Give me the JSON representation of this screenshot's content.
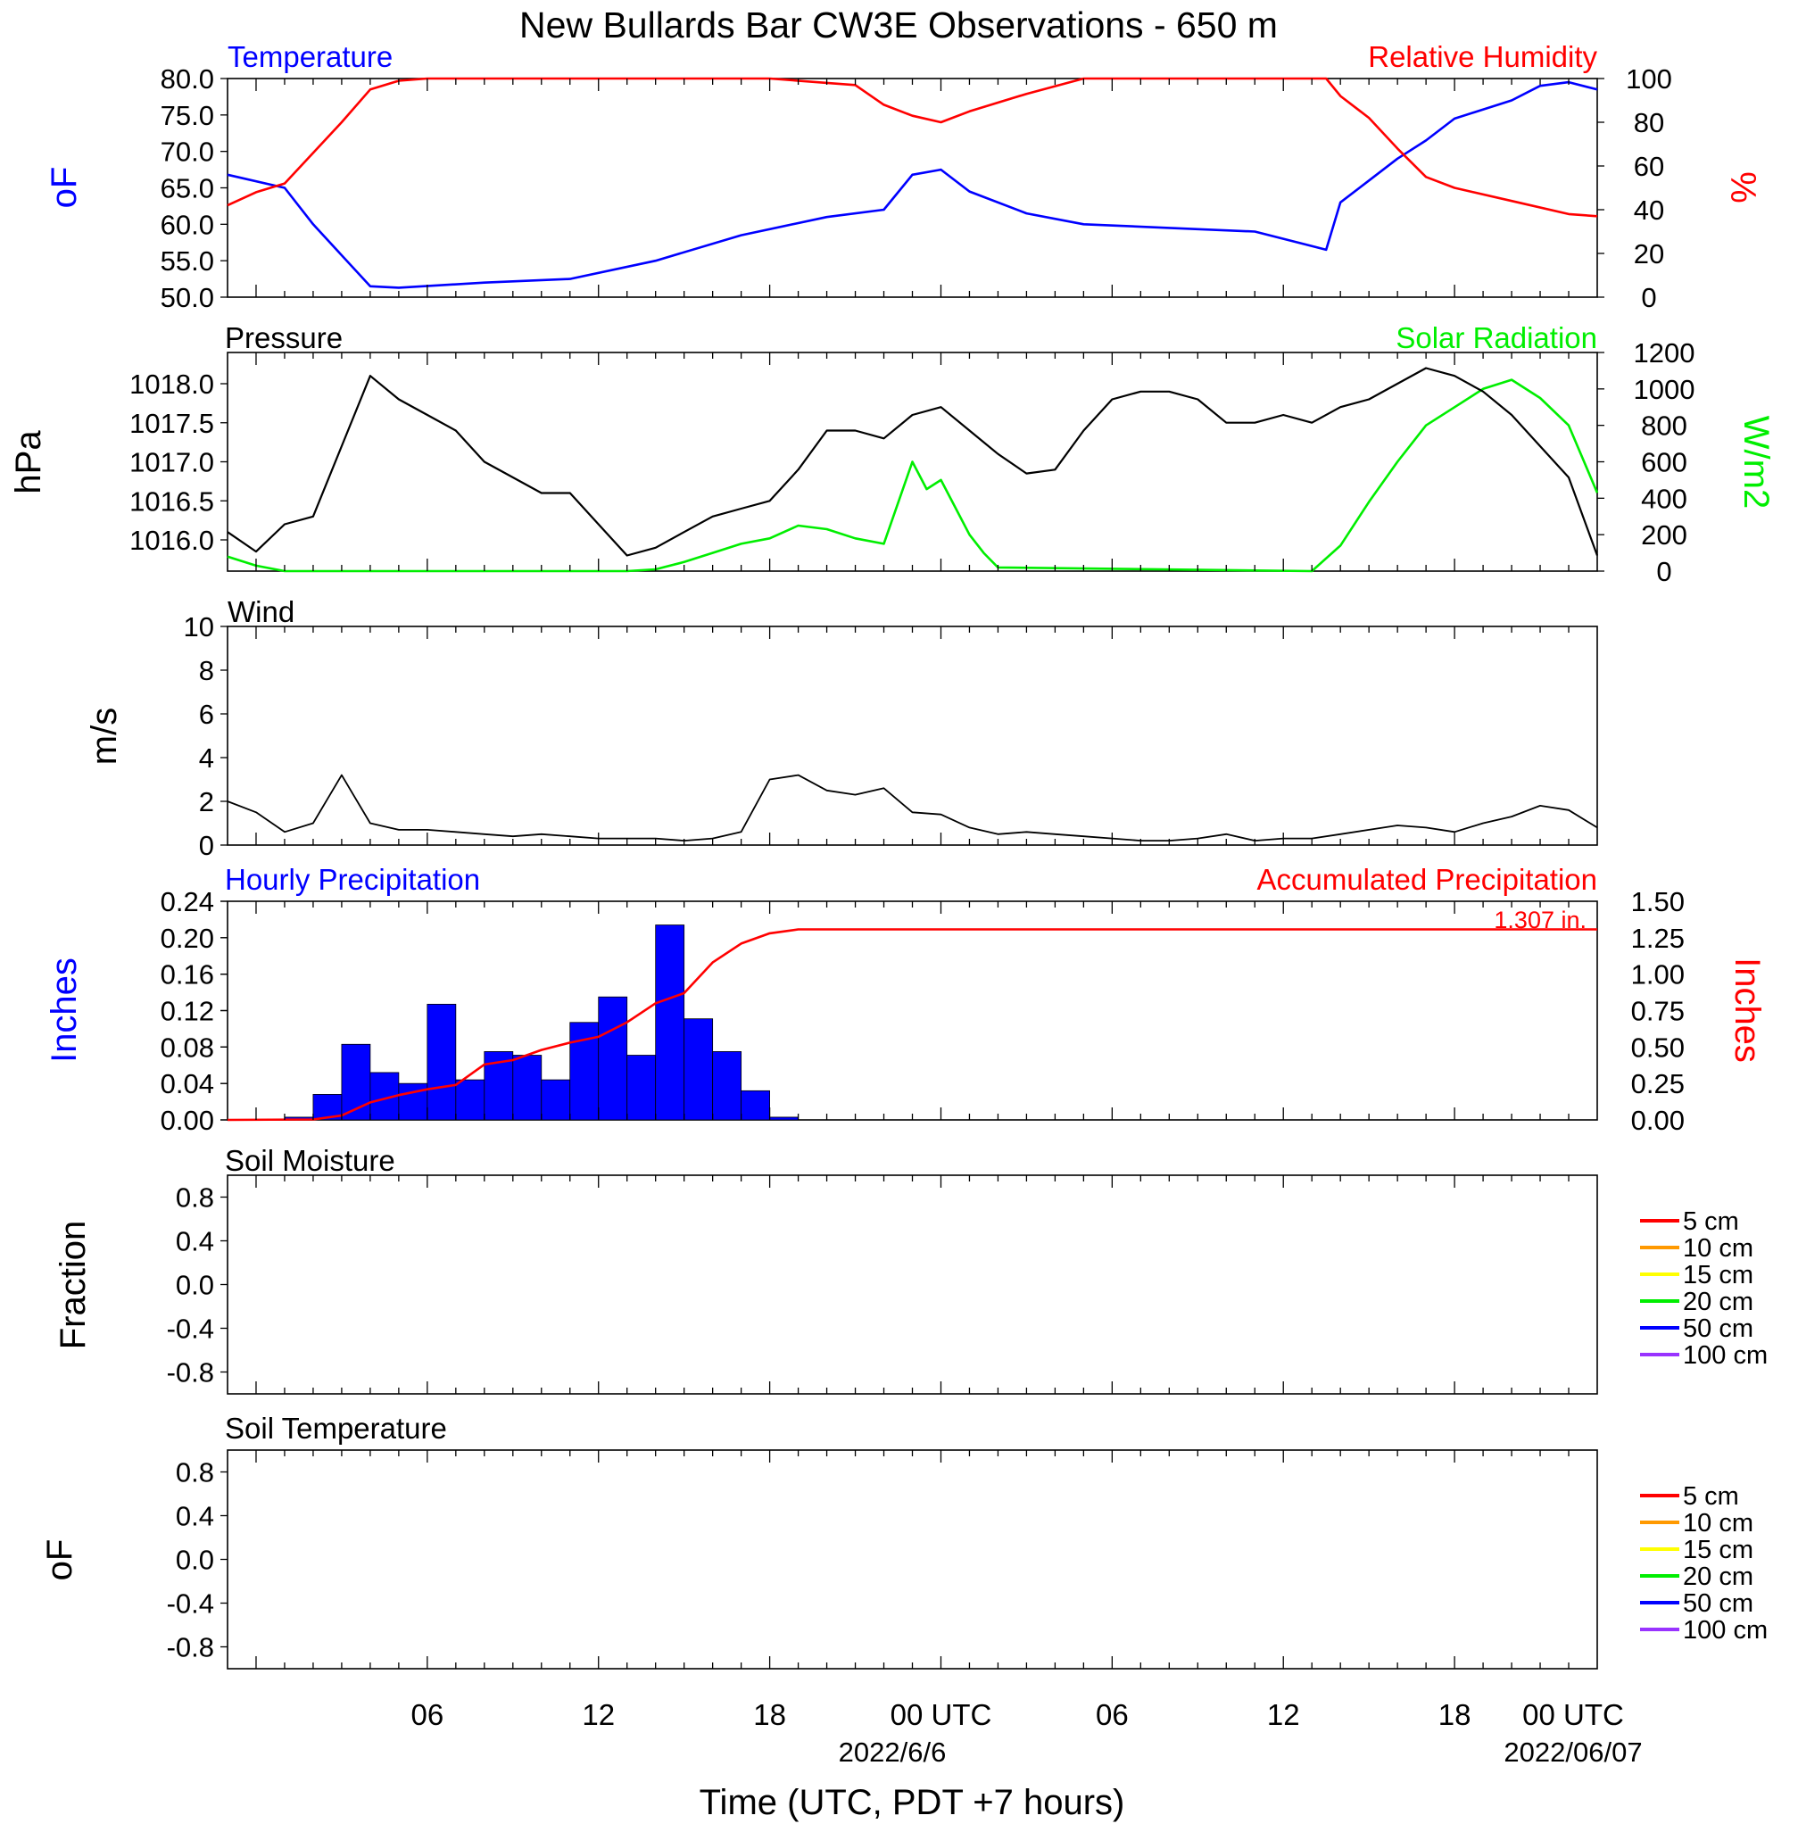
{
  "title": "New Bullards Bar CW3E Observations - 650 m",
  "x_axis": {
    "label": "Time (UTC, PDT +7 hours)",
    "tick_labels": [
      "06",
      "12",
      "18",
      "00 UTC",
      "06",
      "12",
      "18",
      "00 UTC"
    ],
    "date_labels": [
      "2022/6/6",
      "2022/06/07"
    ],
    "range_hours": [
      -1,
      47
    ]
  },
  "colors": {
    "blue": "#0000ff",
    "red": "#ff0000",
    "green": "#00ee00",
    "black": "#000000"
  },
  "panels": {
    "temp_rh": {
      "left_title": "Temperature",
      "right_title": "Relative Humidity",
      "left_unit": "oF",
      "right_unit": "%",
      "left_ticks": [
        "80.0",
        "75.0",
        "70.0",
        "65.0",
        "60.0",
        "55.0",
        "50.0"
      ],
      "right_ticks": [
        "100",
        "80",
        "60",
        "40",
        "20",
        "0"
      ]
    },
    "pressure_solar": {
      "left_title": "Pressure",
      "right_title": "Solar Radiation",
      "left_unit": "hPa",
      "right_unit": "W/m2",
      "left_ticks": [
        "1018.0",
        "1017.5",
        "1017.0",
        "1016.5",
        "1016.0"
      ],
      "right_ticks": [
        "1200",
        "1000",
        "800",
        "600",
        "400",
        "200",
        "0"
      ]
    },
    "wind": {
      "left_title": "Wind",
      "left_unit": "m/s",
      "left_ticks": [
        "10",
        "8",
        "6",
        "4",
        "2",
        "0"
      ]
    },
    "precip": {
      "left_title": "Hourly Precipitation",
      "right_title": "Accumulated Precipitation",
      "left_unit": "Inches",
      "right_unit": "Inches",
      "total_label": "1.307 in.",
      "left_ticks": [
        "0.24",
        "0.20",
        "0.16",
        "0.12",
        "0.08",
        "0.04",
        "0.00"
      ],
      "right_ticks": [
        "1.50",
        "1.25",
        "1.00",
        "0.75",
        "0.50",
        "0.25",
        "0.00"
      ]
    },
    "soil_moisture": {
      "left_title": "Soil Moisture",
      "left_unit": "Fraction",
      "left_ticks": [
        "0.8",
        "0.4",
        "0.0",
        "-0.4",
        "-0.8"
      ],
      "legend": [
        "5 cm",
        "10 cm",
        "15 cm",
        "20 cm",
        "50 cm",
        "100 cm"
      ]
    },
    "soil_temp": {
      "left_title": "Soil Temperature",
      "left_unit": "oF",
      "left_ticks": [
        "0.8",
        "0.4",
        "0.0",
        "-0.4",
        "-0.8"
      ],
      "legend": [
        "5 cm",
        "10 cm",
        "15 cm",
        "20 cm",
        "50 cm",
        "100 cm"
      ]
    }
  },
  "legend_colors": [
    "#ff0000",
    "#ff9900",
    "#ffff00",
    "#00ee00",
    "#0000ff",
    "#9933ff"
  ],
  "chart_data": [
    {
      "type": "line",
      "title": "Temperature",
      "xlabel": "Time (UTC, PDT +7 hours)",
      "ylabel": "oF",
      "ylim": [
        50,
        80
      ],
      "series": [
        {
          "name": "Temperature",
          "x": [
            -1,
            1,
            2,
            4,
            5,
            8,
            11,
            14,
            17,
            20,
            22,
            23,
            24,
            25,
            27,
            29,
            32,
            35,
            37,
            37.5,
            38,
            39,
            40,
            41,
            42,
            44,
            45,
            46,
            47
          ],
          "values": [
            66.8,
            65.0,
            60.0,
            51.5,
            51.3,
            52.0,
            52.5,
            55.0,
            58.5,
            61.0,
            62.0,
            66.8,
            67.5,
            64.5,
            61.5,
            60.0,
            59.5,
            59.0,
            57.0,
            56.5,
            63.0,
            66.0,
            69.0,
            71.5,
            74.5,
            77.0,
            79.0,
            79.5,
            78.5
          ]
        }
      ]
    },
    {
      "type": "line",
      "title": "Relative Humidity",
      "ylabel": "%",
      "ylim": [
        0,
        100
      ],
      "series": [
        {
          "name": "Relative Humidity",
          "x": [
            -1,
            0,
            1,
            3,
            4,
            5,
            6,
            9,
            12,
            15,
            18,
            20,
            21,
            22,
            23,
            24,
            25,
            27,
            29,
            32,
            35,
            37,
            37.5,
            38,
            39,
            40,
            41,
            42,
            44,
            46,
            47
          ],
          "values": [
            42,
            48,
            52,
            80,
            95,
            99,
            100,
            100,
            100,
            100,
            100,
            98,
            97,
            88,
            83,
            80,
            85,
            93,
            100,
            100,
            100,
            100,
            100,
            92,
            82,
            68,
            55,
            50,
            44,
            38,
            37
          ]
        }
      ]
    },
    {
      "type": "line",
      "title": "Pressure",
      "ylabel": "hPa",
      "ylim": [
        1015.6,
        1018.4
      ],
      "series": [
        {
          "name": "Pressure",
          "x": [
            -1,
            0,
            1,
            2,
            3,
            4,
            5,
            6,
            7,
            8,
            9,
            10,
            11,
            12,
            13,
            14,
            15,
            16,
            17,
            18,
            19,
            20,
            21,
            22,
            23,
            24,
            25,
            26,
            27,
            28,
            29,
            30,
            31,
            32,
            33,
            34,
            35,
            36,
            37,
            38,
            39,
            40,
            41,
            42,
            43,
            44,
            45,
            46,
            47
          ],
          "values": [
            1016.1,
            1015.85,
            1016.2,
            1016.3,
            1017.2,
            1018.1,
            1017.8,
            1017.6,
            1017.4,
            1017.0,
            1016.8,
            1016.6,
            1016.6,
            1016.2,
            1015.8,
            1015.9,
            1016.1,
            1016.3,
            1016.4,
            1016.5,
            1016.9,
            1017.4,
            1017.4,
            1017.3,
            1017.6,
            1017.7,
            1017.4,
            1017.1,
            1016.85,
            1016.9,
            1017.4,
            1017.8,
            1017.9,
            1017.9,
            1017.8,
            1017.5,
            1017.5,
            1017.6,
            1017.5,
            1017.7,
            1017.8,
            1018.0,
            1018.2,
            1018.1,
            1017.9,
            1017.6,
            1017.2,
            1016.8,
            1015.8
          ]
        }
      ]
    },
    {
      "type": "line",
      "title": "Solar Radiation",
      "ylabel": "W/m2",
      "ylim": [
        0,
        1200
      ],
      "series": [
        {
          "name": "Solar Radiation",
          "x": [
            -1,
            0,
            1,
            12,
            13,
            14,
            15,
            16,
            17,
            18,
            19,
            20,
            21,
            22,
            23,
            23.5,
            24,
            24.5,
            25,
            25.5,
            26,
            37,
            38,
            39,
            40,
            41,
            42,
            43,
            44,
            45,
            46,
            47
          ],
          "values": [
            80,
            30,
            0,
            0,
            0,
            10,
            50,
            100,
            150,
            180,
            250,
            230,
            180,
            150,
            600,
            450,
            500,
            350,
            200,
            100,
            20,
            0,
            140,
            380,
            600,
            800,
            900,
            1000,
            1050,
            950,
            800,
            430
          ]
        }
      ]
    },
    {
      "type": "line",
      "title": "Wind",
      "ylabel": "m/s",
      "ylim": [
        0,
        10
      ],
      "series": [
        {
          "name": "Wind",
          "x": [
            -1,
            0,
            1,
            2,
            3,
            4,
            5,
            6,
            7,
            8,
            9,
            10,
            11,
            12,
            13,
            14,
            15,
            16,
            17,
            18,
            19,
            20,
            21,
            22,
            23,
            24,
            25,
            26,
            27,
            28,
            29,
            30,
            31,
            32,
            33,
            34,
            35,
            36,
            37,
            38,
            39,
            40,
            41,
            42,
            43,
            44,
            45,
            46,
            47
          ],
          "values": [
            2.0,
            1.5,
            0.6,
            1.0,
            3.2,
            1.0,
            0.7,
            0.7,
            0.6,
            0.5,
            0.4,
            0.5,
            0.4,
            0.3,
            0.3,
            0.3,
            0.2,
            0.3,
            0.6,
            3.0,
            3.2,
            2.5,
            2.3,
            2.6,
            1.5,
            1.4,
            0.8,
            0.5,
            0.6,
            0.5,
            0.4,
            0.3,
            0.2,
            0.2,
            0.3,
            0.5,
            0.2,
            0.3,
            0.3,
            0.5,
            0.7,
            0.9,
            0.8,
            0.6,
            1.0,
            1.3,
            1.8,
            1.6,
            0.8
          ]
        }
      ]
    },
    {
      "type": "bar",
      "title": "Hourly Precipitation",
      "ylabel": "Inches",
      "ylim": [
        0,
        0.24
      ],
      "categories": [
        1,
        2,
        3,
        4,
        5,
        6,
        7,
        8,
        9,
        10,
        11,
        12,
        13,
        14,
        15,
        16,
        17,
        18,
        19
      ],
      "values": [
        0.003,
        0.028,
        0.083,
        0.052,
        0.04,
        0.127,
        0.044,
        0.075,
        0.071,
        0.044,
        0.107,
        0.135,
        0.071,
        0.214,
        0.111,
        0.075,
        0.032,
        0.003,
        0.0
      ]
    },
    {
      "type": "line",
      "title": "Accumulated Precipitation",
      "ylabel": "Inches",
      "ylim": [
        0,
        1.5
      ],
      "series": [
        {
          "name": "Accumulated Precipitation",
          "x": [
            -1,
            2,
            3,
            4,
            5,
            6,
            7,
            8,
            9,
            10,
            11,
            12,
            13,
            14,
            15,
            16,
            17,
            18,
            19,
            20,
            47
          ],
          "values": [
            0.0,
            0.003,
            0.03,
            0.12,
            0.17,
            0.21,
            0.24,
            0.38,
            0.41,
            0.48,
            0.53,
            0.57,
            0.67,
            0.8,
            0.87,
            1.08,
            1.21,
            1.28,
            1.307,
            1.307,
            1.307
          ]
        }
      ]
    }
  ]
}
